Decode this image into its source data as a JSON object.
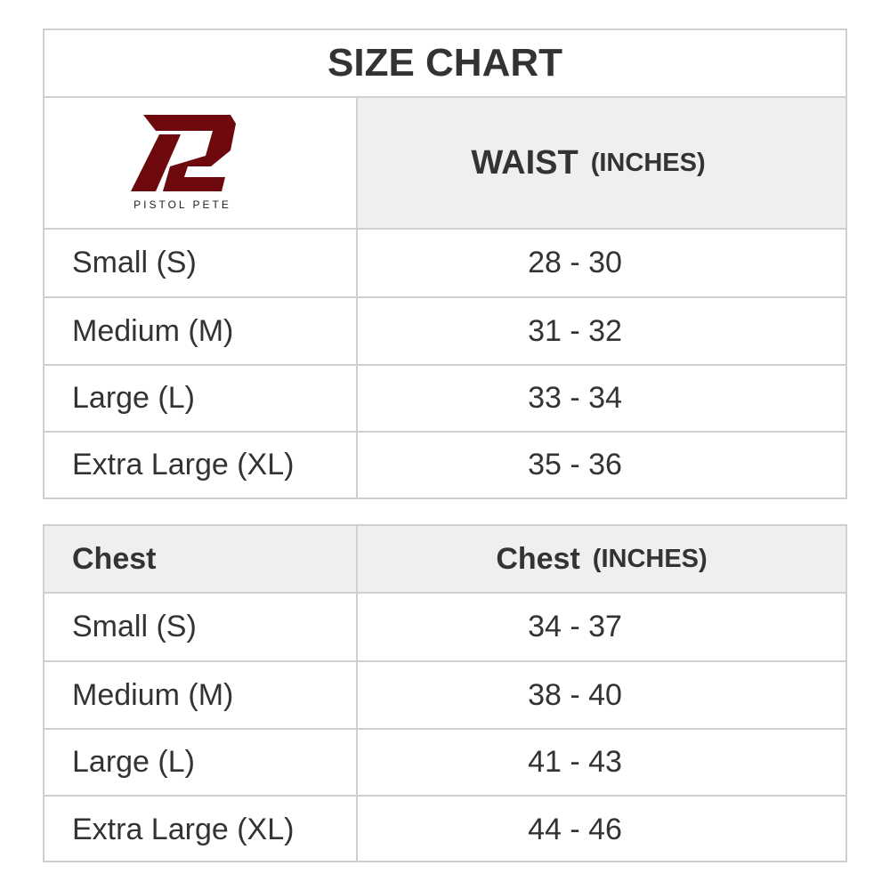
{
  "title": "SIZE CHART",
  "logo": {
    "text": "PISTOL PETE",
    "color": "#6e0a0e"
  },
  "waist": {
    "header_main": "WAIST",
    "header_unit": "(INCHES)",
    "rows": [
      {
        "size": "Small (S)",
        "value": "28 - 30"
      },
      {
        "size": "Medium (M)",
        "value": "31 - 32"
      },
      {
        "size": "Large (L)",
        "value": "33 - 34"
      },
      {
        "size": "Extra Large (XL)",
        "value": "35 - 36"
      }
    ]
  },
  "chest": {
    "label": "Chest",
    "header_main": "Chest",
    "header_unit": "(INCHES)",
    "rows": [
      {
        "size": "Small (S)",
        "value": "34 - 37"
      },
      {
        "size": "Medium (M)",
        "value": "38 - 40"
      },
      {
        "size": "Large (L)",
        "value": "41 - 43"
      },
      {
        "size": "Extra Large (XL)",
        "value": "44 - 46"
      }
    ]
  }
}
